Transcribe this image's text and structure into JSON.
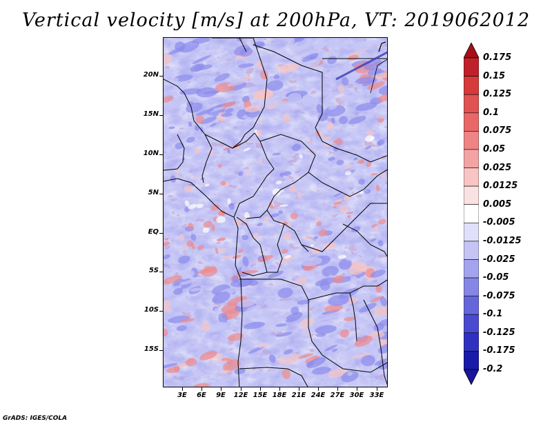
{
  "title": "Vertical velocity [m/s] at 200hPa, VT: 2019062012",
  "credit": "GrADS: IGES/COLA",
  "map": {
    "lat_labels": [
      "20N",
      "15N",
      "10N",
      "5N",
      "EQ",
      "5S",
      "10S",
      "15S"
    ],
    "lon_labels": [
      "3E",
      "6E",
      "9E",
      "12E",
      "15E",
      "18E",
      "21E",
      "24E",
      "27E",
      "30E",
      "33E"
    ]
  },
  "colorbar": {
    "levels": [
      "0.175",
      "0.15",
      "0.125",
      "0.1",
      "0.075",
      "0.05",
      "0.025",
      "0.0125",
      "0.005",
      "-0.005",
      "-0.0125",
      "-0.025",
      "-0.05",
      "-0.075",
      "-0.1",
      "-0.125",
      "-0.175",
      "-0.2"
    ],
    "colors": [
      "#a50f15",
      "#c0202a",
      "#d63a3a",
      "#e05353",
      "#e86868",
      "#ee8484",
      "#f4a3a3",
      "#f8c4c4",
      "#fbe2e2",
      "#ffffff",
      "#e0e0fa",
      "#c4c4f5",
      "#a4a4ee",
      "#8686e6",
      "#6666dc",
      "#4a4ad0",
      "#3030c0",
      "#1a1aa8"
    ],
    "top_color": "#a50f15",
    "bottom_color": "#18189a"
  },
  "palette": {
    "red": "#f08a8a",
    "blue": "#8c8cec",
    "light_blue": "#c8c8f6",
    "light_red": "#f6c4c4"
  }
}
